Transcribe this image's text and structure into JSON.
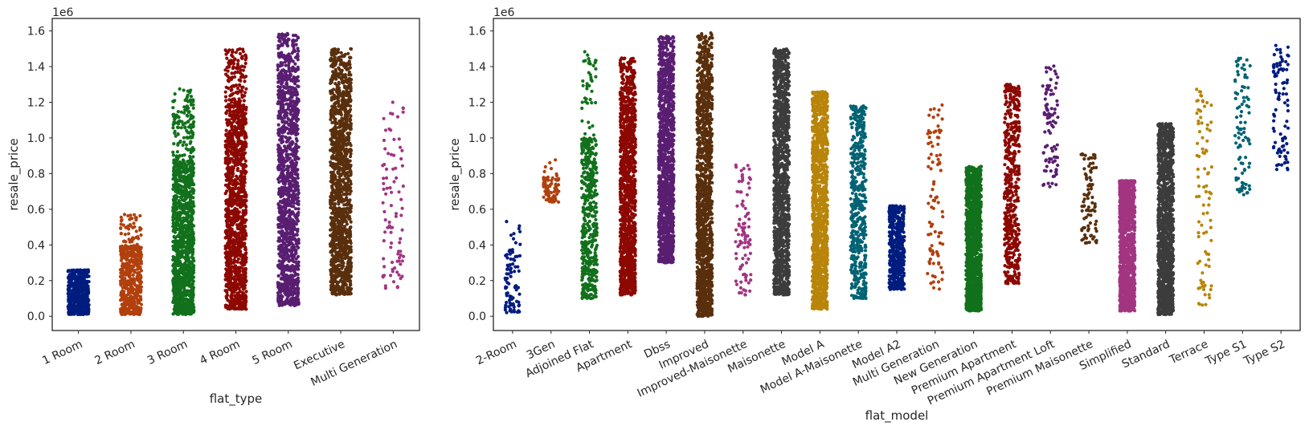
{
  "chart_data": [
    {
      "type": "scatter",
      "style": "strip",
      "xlabel": "flat_type",
      "ylabel": "resale_price",
      "offset_label": "1e6",
      "ylim": [
        -0.08,
        1.67
      ],
      "yticks": [
        "0.0",
        "0.2",
        "0.4",
        "0.6",
        "0.8",
        "1.0",
        "1.2",
        "1.4",
        "1.6"
      ],
      "grid": false,
      "categories": [
        "1 Room",
        "2 Room",
        "3 Room",
        "4 Room",
        "5 Room",
        "Executive",
        "Multi Generation"
      ],
      "ranges": [
        {
          "min": 0.01,
          "dense_max": 0.25,
          "max": 0.26,
          "color": "#001c7f",
          "density": "medium"
        },
        {
          "min": 0.01,
          "dense_max": 0.4,
          "max": 0.58,
          "color": "#b1400d",
          "density": "medium"
        },
        {
          "min": 0.01,
          "dense_max": 0.88,
          "max": 1.28,
          "color": "#12711c",
          "density": "high"
        },
        {
          "min": 0.04,
          "dense_max": 1.2,
          "max": 1.5,
          "color": "#8c0800",
          "density": "high"
        },
        {
          "min": 0.06,
          "dense_max": 1.35,
          "max": 1.59,
          "color": "#591e71",
          "density": "high"
        },
        {
          "min": 0.12,
          "dense_max": 1.28,
          "max": 1.5,
          "color": "#592f0d",
          "density": "high"
        },
        {
          "min": 0.15,
          "dense_max": 1.0,
          "max": 1.2,
          "color": "#a23582",
          "density": "low"
        }
      ]
    },
    {
      "type": "scatter",
      "style": "strip",
      "xlabel": "flat_model",
      "ylabel": "resale_price",
      "offset_label": "1e6",
      "ylim": [
        -0.08,
        1.67
      ],
      "yticks": [
        "0.0",
        "0.2",
        "0.4",
        "0.6",
        "0.8",
        "1.0",
        "1.2",
        "1.4",
        "1.6"
      ],
      "grid": false,
      "categories": [
        "2-Room",
        "3Gen",
        "Adjoined Flat",
        "Apartment",
        "Dbss",
        "Improved",
        "Improved-Maisonette",
        "Maisonette",
        "Model A",
        "Model A-Maisonette",
        "Model A2",
        "Multi Generation",
        "New Generation",
        "Premium Apartment",
        "Premium Apartment Loft",
        "Premium Maisonette",
        "Simplified",
        "Standard",
        "Terrace",
        "Type S1",
        "Type S2"
      ],
      "ranges": [
        {
          "min": 0.02,
          "dense_max": 0.38,
          "max": 0.54,
          "color": "#001c7f",
          "density": "low"
        },
        {
          "min": 0.64,
          "dense_max": 0.78,
          "max": 0.88,
          "color": "#b1400d",
          "density": "low"
        },
        {
          "min": 0.1,
          "dense_max": 1.0,
          "max": 1.5,
          "color": "#12711c",
          "density": "medium"
        },
        {
          "min": 0.12,
          "dense_max": 1.2,
          "max": 1.45,
          "color": "#8c0800",
          "density": "high"
        },
        {
          "min": 0.3,
          "dense_max": 1.4,
          "max": 1.57,
          "color": "#591e71",
          "density": "high"
        },
        {
          "min": 0.0,
          "dense_max": 1.32,
          "max": 1.59,
          "color": "#592f0d",
          "density": "high"
        },
        {
          "min": 0.12,
          "dense_max": 0.8,
          "max": 0.85,
          "color": "#a23582",
          "density": "low"
        },
        {
          "min": 0.12,
          "dense_max": 1.35,
          "max": 1.5,
          "color": "#3c3c3c",
          "density": "high"
        },
        {
          "min": 0.04,
          "dense_max": 1.15,
          "max": 1.26,
          "color": "#b8850a",
          "density": "high"
        },
        {
          "min": 0.1,
          "dense_max": 1.1,
          "max": 1.18,
          "color": "#006374",
          "density": "medium"
        },
        {
          "min": 0.15,
          "dense_max": 0.58,
          "max": 0.62,
          "color": "#001c7f",
          "density": "medium"
        },
        {
          "min": 0.15,
          "dense_max": 1.05,
          "max": 1.2,
          "color": "#b1400d",
          "density": "low"
        },
        {
          "min": 0.03,
          "dense_max": 0.75,
          "max": 0.84,
          "color": "#12711c",
          "density": "high"
        },
        {
          "min": 0.18,
          "dense_max": 1.25,
          "max": 1.3,
          "color": "#8c0800",
          "density": "medium"
        },
        {
          "min": 0.72,
          "dense_max": 1.3,
          "max": 1.42,
          "color": "#591e71",
          "density": "low"
        },
        {
          "min": 0.41,
          "dense_max": 0.9,
          "max": 0.91,
          "color": "#592f0d",
          "density": "low"
        },
        {
          "min": 0.03,
          "dense_max": 0.75,
          "max": 0.76,
          "color": "#a23582",
          "density": "high"
        },
        {
          "min": 0.01,
          "dense_max": 1.0,
          "max": 1.08,
          "color": "#3c3c3c",
          "density": "high"
        },
        {
          "min": 0.05,
          "dense_max": 1.2,
          "max": 1.28,
          "color": "#b8850a",
          "density": "low"
        },
        {
          "min": 0.65,
          "dense_max": 1.4,
          "max": 1.45,
          "color": "#006374",
          "density": "low"
        },
        {
          "min": 0.82,
          "dense_max": 1.45,
          "max": 1.52,
          "color": "#001c7f",
          "density": "low"
        }
      ]
    }
  ]
}
